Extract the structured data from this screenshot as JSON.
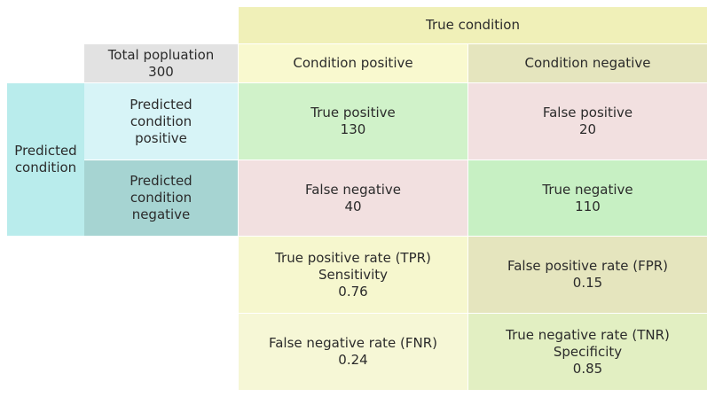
{
  "colors": {
    "true_condition": "#f0f0b8",
    "total_population": "#e2e2e2",
    "condition_positive": "#f9f9cf",
    "condition_negative": "#e5e5be",
    "predicted_condition": "#b9ecec",
    "predicted_positive": "#d7f4f7",
    "predicted_negative": "#a6d4d2",
    "true_positive": "#d0f2c9",
    "false_positive": "#f2e0e0",
    "false_negative": "#f2e0e0",
    "true_negative": "#c7f0c3",
    "tpr": "#f6f7ce",
    "fpr": "#e5e5be",
    "fnr": "#f6f7d6",
    "tnr": "#e2efc2"
  },
  "header": {
    "true_condition": "True condition",
    "total_population": {
      "label": "Total popluation",
      "value": "300"
    },
    "condition_positive": "Condition positive",
    "condition_negative": "Condition negative"
  },
  "rows": {
    "predicted_condition": [
      "Predicted",
      "condition"
    ],
    "predicted_positive": [
      "Predicted",
      "condition",
      "positive"
    ],
    "predicted_negative": [
      "Predicted",
      "condition",
      "negative"
    ]
  },
  "matrix": {
    "true_positive": {
      "label": "True positive",
      "value": "130"
    },
    "false_positive": {
      "label": "False positive",
      "value": "20"
    },
    "false_negative": {
      "label": "False negative",
      "value": "40"
    },
    "true_negative": {
      "label": "True negative",
      "value": "110"
    }
  },
  "rates": {
    "tpr": {
      "label": "True positive rate (TPR)",
      "alt": "Sensitivity",
      "value": "0.76"
    },
    "fpr": {
      "label": "False positive rate (FPR)",
      "value": "0.15"
    },
    "fnr": {
      "label": "False negative rate (FNR)",
      "value": "0.24"
    },
    "tnr": {
      "label": "True negative rate (TNR)",
      "alt": "Specificity",
      "value": "0.85"
    }
  }
}
